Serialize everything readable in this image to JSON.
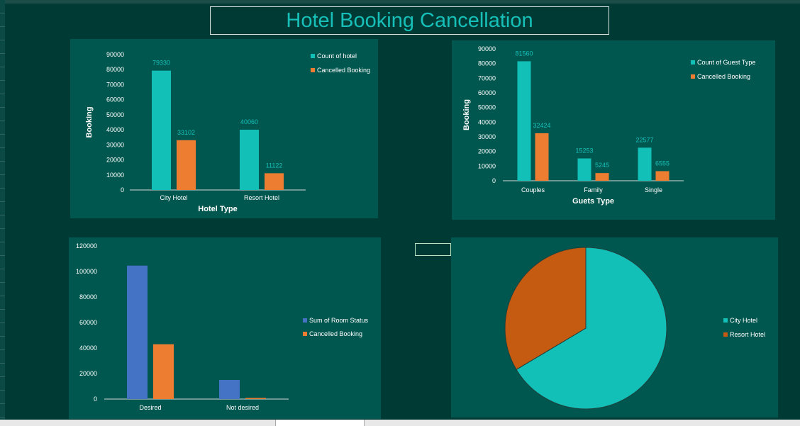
{
  "dashboard": {
    "title": "Hotel Booking Cancellation"
  },
  "chart_data": [
    {
      "type": "bar",
      "categories": [
        "City Hotel",
        "Resort Hotel"
      ],
      "series": [
        {
          "name": "Count of hotel",
          "color": "#12c0b8",
          "values": [
            79330,
            40060
          ],
          "labels": [
            "79330",
            "40060"
          ]
        },
        {
          "name": "Cancelled Booking",
          "color": "#ed7d31",
          "values": [
            33102,
            11122
          ],
          "labels": [
            "33102",
            "11122"
          ]
        }
      ],
      "xlabel": "Hotel Type",
      "ylabel": "Booking",
      "ylim": [
        0,
        90000
      ],
      "yticks": [
        "0",
        "10000",
        "20000",
        "30000",
        "40000",
        "50000",
        "60000",
        "70000",
        "80000",
        "90000"
      ],
      "legend": "right",
      "grid": false
    },
    {
      "type": "bar",
      "categories": [
        "Couples",
        "Family",
        "Single"
      ],
      "series": [
        {
          "name": "Count of Guest Type",
          "color": "#12c0b8",
          "values": [
            81560,
            15253,
            22577
          ],
          "labels": [
            "81560",
            "15253",
            "22577"
          ]
        },
        {
          "name": "Cancelled Booking",
          "color": "#ed7d31",
          "values": [
            32424,
            5245,
            6555
          ],
          "labels": [
            "32424",
            "5245",
            "6555"
          ]
        }
      ],
      "xlabel": "Guets Type",
      "ylabel": "Booking",
      "ylim": [
        0,
        90000
      ],
      "yticks": [
        "0",
        "10000",
        "20000",
        "30000",
        "40000",
        "50000",
        "60000",
        "70000",
        "80000",
        "90000"
      ],
      "legend": "right",
      "grid": false
    },
    {
      "type": "bar",
      "categories": [
        "Desired",
        "Not desired"
      ],
      "series": [
        {
          "name": "Sum of Room Status",
          "color": "#4472c4",
          "values": [
            104600,
            15000
          ]
        },
        {
          "name": "Cancelled Booking",
          "color": "#ed7d31",
          "values": [
            43000,
            900
          ]
        }
      ],
      "xlabel": "",
      "ylabel": "",
      "ylim": [
        0,
        120000
      ],
      "yticks": [
        "0",
        "20000",
        "40000",
        "60000",
        "80000",
        "100000",
        "120000"
      ],
      "legend": "right",
      "grid": false
    },
    {
      "type": "pie",
      "categories": [
        "City Hotel",
        "Resort Hotel"
      ],
      "values": [
        79330,
        40060
      ],
      "colors": [
        "#12c0b8",
        "#c55a11"
      ],
      "legend": "right"
    }
  ]
}
